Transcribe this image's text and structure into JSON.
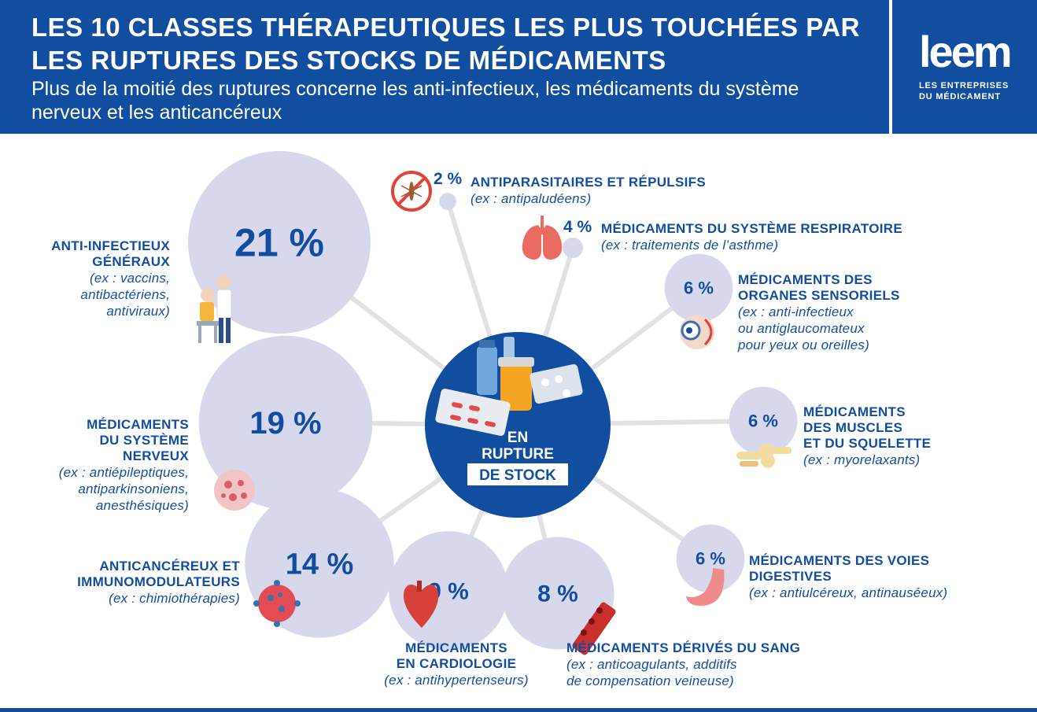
{
  "header": {
    "title": "LES 10 CLASSES THÉRAPEUTIQUES LES PLUS TOUCHÉES PAR LES RUPTURES DES STOCKS DE MÉDICAMENTS",
    "subtitle": "Plus de la moitié des ruptures concerne les anti-infectieux, les médicaments du système nerveux et les anticancéreux",
    "logo_word": "leem",
    "logo_tagline_1": "LES ENTREPRISES",
    "logo_tagline_2": "DU MÉDICAMENT"
  },
  "center": {
    "line1": "EN",
    "line2": "RUPTURE",
    "line3": "DE STOCK"
  },
  "colors": {
    "brand_blue": "#124ea0",
    "bubble": "#d8d8ec",
    "connector": "#e1e1e6"
  },
  "chart_data": {
    "type": "bubble",
    "unit": "%",
    "categories": [
      "ANTI-INFECTIEUX GÉNÉRAUX",
      "MÉDICAMENTS DU SYSTÈME NERVEUX",
      "ANTICANCÉREUX ET IMMUNOMODULATEURS",
      "MÉDICAMENTS EN CARDIOLOGIE",
      "MÉDICAMENTS DÉRIVÉS DU SANG",
      "MÉDICAMENTS DES VOIES DIGESTIVES",
      "MÉDICAMENTS DES MUSCLES ET DU SQUELETTE",
      "MÉDICAMENTS DES ORGANES SENSORIELS",
      "MÉDICAMENTS DU SYSTÈME RESPIRATOIRE",
      "ANTIPARASITAIRES ET RÉPULSIFS"
    ],
    "values": [
      21,
      19,
      14,
      9,
      8,
      6,
      6,
      6,
      4,
      2
    ],
    "value_labels": [
      "21 %",
      "19 %",
      "14 %",
      "9 %",
      "8 %",
      "6 %",
      "6 %",
      "6 %",
      "4 %",
      "2 %"
    ]
  },
  "labels": {
    "anti_infectieux": {
      "title_1": "ANTI-INFECTIEUX",
      "title_2": "GÉNÉRAUX",
      "ex_1": "(ex : vaccins,",
      "ex_2": "antibactériens,",
      "ex_3": "antiviraux)"
    },
    "nerveux": {
      "title_1": "MÉDICAMENTS",
      "title_2": "DU SYSTÈME",
      "title_3": "NERVEUX",
      "ex_1": "(ex : antiépileptiques,",
      "ex_2": "antiparkinsoniens,",
      "ex_3": "anesthésiques)"
    },
    "anticancereux": {
      "title_1": "ANTICANCÉREUX ET",
      "title_2": "IMMUNOMODULATEURS",
      "ex_1": "(ex : chimiothérapies)"
    },
    "cardiologie": {
      "title_1": "MÉDICAMENTS",
      "title_2": "EN CARDIOLOGIE",
      "ex_1": "(ex : antihypertenseurs)"
    },
    "sang": {
      "title_1": "MÉDICAMENTS DÉRIVÉS DU SANG",
      "ex_1": "(ex : anticoagulants, additifs",
      "ex_2": "de compensation veineuse)"
    },
    "digestives": {
      "title_1": "MÉDICAMENTS DES VOIES",
      "title_2": "DIGESTIVES",
      "ex_1": "(ex : antiulcéreux, antinauséeux)"
    },
    "muscles": {
      "title_1": "MÉDICAMENTS",
      "title_2": "DES MUSCLES",
      "title_3": "ET DU SQUELETTE",
      "ex_1": "(ex : myorelaxants)"
    },
    "sensoriels": {
      "title_1": "MÉDICAMENTS DES",
      "title_2": "ORGANES SENSORIELS",
      "ex_1": "(ex : anti-infectieux",
      "ex_2": "ou antiglaucomateux",
      "ex_3": "pour yeux ou oreilles)"
    },
    "respiratoire": {
      "title_1": "MÉDICAMENTS DU SYSTÈME RESPIRATOIRE",
      "ex_1": "(ex : traitements de l’asthme)"
    },
    "antiparasitaires": {
      "title_1": "ANTIPARASITAIRES ET RÉPULSIFS",
      "ex_1": "(ex : antipaludéens)"
    }
  }
}
